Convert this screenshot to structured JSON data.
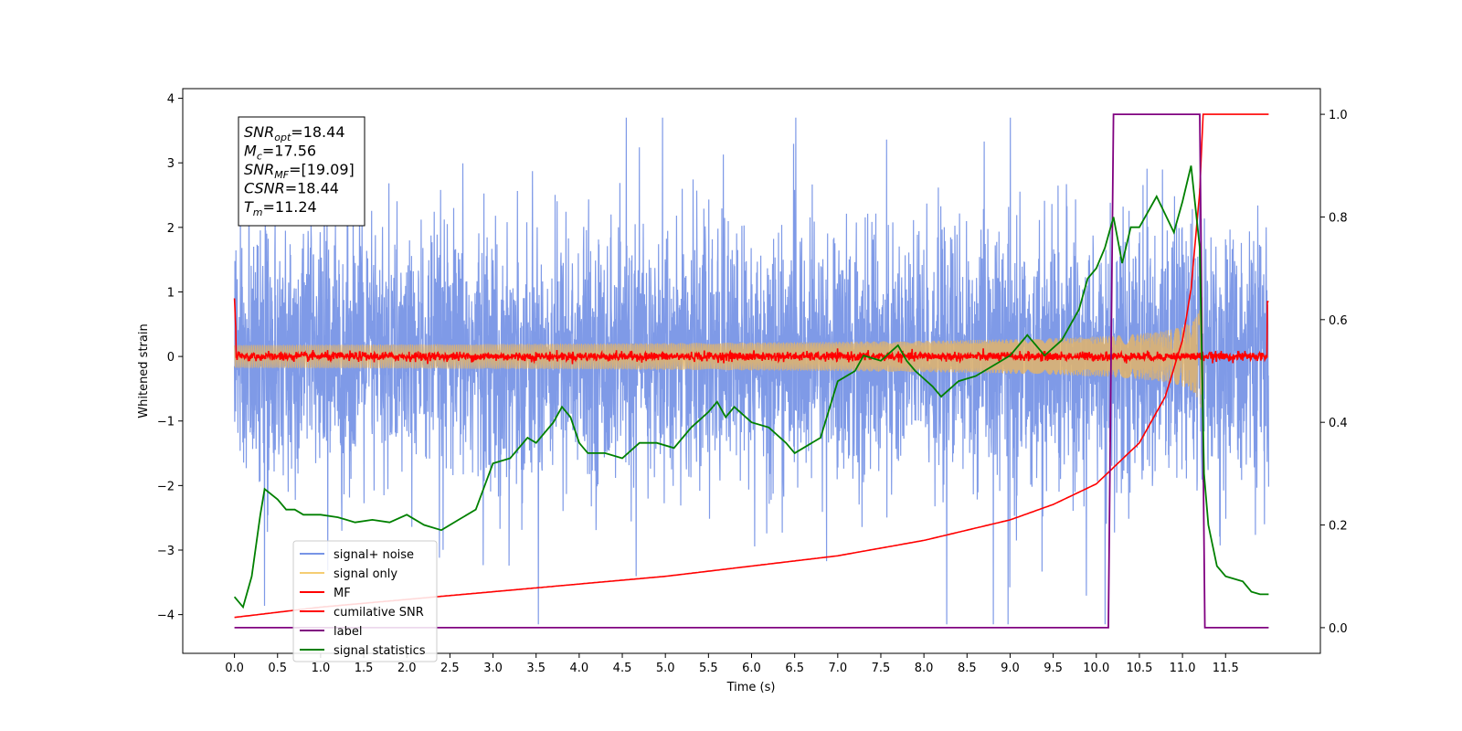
{
  "chart_data": {
    "type": "line",
    "xlabel": "Time (s)",
    "ylabel": "Whitened strain",
    "x_ticks": [
      "0.0",
      "0.5",
      "1.0",
      "1.5",
      "2.0",
      "2.5",
      "3.0",
      "3.5",
      "4.0",
      "4.5",
      "5.0",
      "5.5",
      "6.0",
      "6.5",
      "7.0",
      "7.5",
      "8.0",
      "8.5",
      "9.0",
      "9.5",
      "10.0",
      "10.5",
      "11.0",
      "11.5"
    ],
    "y_ticks_left": [
      "4",
      "3",
      "2",
      "1",
      "0",
      "−1",
      "−2",
      "−3",
      "−4"
    ],
    "y_ticks_right": [
      "1.0",
      "0.8",
      "0.6",
      "0.4",
      "0.2",
      "0.0"
    ],
    "xlim": [
      -0.6,
      12.6
    ],
    "ylim_left": [
      -4.6,
      4.15
    ],
    "ylim_right": [
      -0.05,
      1.05
    ],
    "grid": false,
    "legend_position": "lower-left",
    "annotation": {
      "lines": [
        {
          "main": "SNR",
          "sub": "opt",
          "value": "=18.44"
        },
        {
          "main": "M",
          "sub": "c",
          "value": "=17.56"
        },
        {
          "main": "SNR",
          "sub": "MF",
          "value": "=[19.09]"
        },
        {
          "main": "CSNR",
          "sub": "",
          "value": "=18.44"
        },
        {
          "main": "T",
          "sub": "m",
          "value": "=11.24"
        }
      ]
    },
    "series": [
      {
        "name": "signal+ noise",
        "color": "#7895e6",
        "axis": "left",
        "note": "noisy strain, amplitude ~±2.5 with spikes to ±3.7"
      },
      {
        "name": "signal only",
        "color": "#f5cd72",
        "axis": "left",
        "chirp_peak_time": 11.24,
        "peak_amplitude": 1.3
      },
      {
        "name": "MF",
        "color": "#ff0000",
        "axis": "left",
        "note": "matched filter output, near 0 with small fluctuations"
      },
      {
        "name": "cumilative SNR",
        "color": "#ff0000",
        "axis": "right",
        "x": [
          0.0,
          1.0,
          2.0,
          3.0,
          4.0,
          5.0,
          6.0,
          7.0,
          8.0,
          9.0,
          9.5,
          10.0,
          10.5,
          10.8,
          11.0,
          11.1,
          11.2,
          11.24,
          12.0
        ],
        "y": [
          0.02,
          0.04,
          0.055,
          0.07,
          0.085,
          0.1,
          0.12,
          0.14,
          0.17,
          0.21,
          0.24,
          0.28,
          0.36,
          0.45,
          0.56,
          0.66,
          0.85,
          1.0,
          1.0
        ]
      },
      {
        "name": "label",
        "color": "#800080",
        "axis": "right",
        "x": [
          0.0,
          10.14,
          10.2,
          11.2,
          11.26,
          12.0
        ],
        "y": [
          0.0,
          0.0,
          1.0,
          1.0,
          0.0,
          0.0
        ]
      },
      {
        "name": "signal statistics",
        "color": "#008000",
        "axis": "right",
        "x": [
          0.0,
          0.1,
          0.2,
          0.3,
          0.35,
          0.5,
          0.6,
          0.7,
          0.8,
          1.0,
          1.2,
          1.4,
          1.6,
          1.8,
          2.0,
          2.2,
          2.4,
          2.6,
          2.8,
          3.0,
          3.2,
          3.4,
          3.5,
          3.7,
          3.8,
          3.9,
          4.0,
          4.1,
          4.3,
          4.5,
          4.7,
          4.9,
          5.1,
          5.3,
          5.5,
          5.6,
          5.7,
          5.8,
          6.0,
          6.2,
          6.4,
          6.5,
          6.6,
          6.8,
          7.0,
          7.2,
          7.3,
          7.5,
          7.7,
          7.8,
          7.9,
          8.1,
          8.2,
          8.4,
          8.6,
          8.8,
          9.0,
          9.2,
          9.4,
          9.6,
          9.8,
          9.9,
          10.0,
          10.1,
          10.2,
          10.3,
          10.4,
          10.5,
          10.7,
          10.9,
          11.0,
          11.1,
          11.2,
          11.25,
          11.3,
          11.4,
          11.5,
          11.6,
          11.7,
          11.8,
          11.9,
          12.0
        ],
        "y": [
          0.06,
          0.04,
          0.1,
          0.22,
          0.27,
          0.25,
          0.23,
          0.23,
          0.22,
          0.22,
          0.215,
          0.205,
          0.21,
          0.205,
          0.22,
          0.2,
          0.19,
          0.21,
          0.23,
          0.32,
          0.33,
          0.37,
          0.36,
          0.4,
          0.43,
          0.41,
          0.36,
          0.34,
          0.34,
          0.33,
          0.36,
          0.36,
          0.35,
          0.39,
          0.42,
          0.44,
          0.41,
          0.43,
          0.4,
          0.39,
          0.36,
          0.34,
          0.35,
          0.37,
          0.48,
          0.5,
          0.53,
          0.52,
          0.55,
          0.52,
          0.5,
          0.47,
          0.45,
          0.48,
          0.49,
          0.51,
          0.53,
          0.57,
          0.53,
          0.56,
          0.62,
          0.68,
          0.7,
          0.74,
          0.8,
          0.71,
          0.78,
          0.78,
          0.84,
          0.77,
          0.83,
          0.9,
          0.74,
          0.3,
          0.2,
          0.12,
          0.1,
          0.095,
          0.09,
          0.07,
          0.065,
          0.065
        ]
      }
    ]
  },
  "legend": {
    "items": [
      "signal+ noise",
      "signal only",
      "MF",
      "cumilative SNR",
      "label",
      "signal statistics"
    ]
  }
}
